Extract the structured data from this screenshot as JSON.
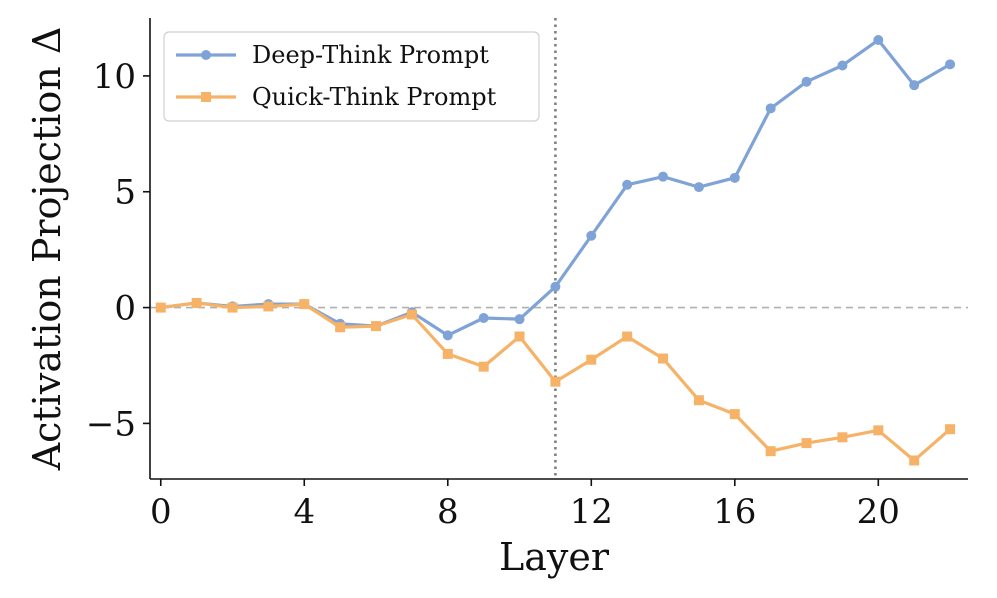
{
  "chart_data": {
    "type": "line",
    "xlabel": "Layer",
    "ylabel": "Activation Projection Δ",
    "xlim": [
      -0.3,
      22.5
    ],
    "ylim": [
      -7.4,
      12.5
    ],
    "xticks": [
      0,
      4,
      8,
      12,
      16,
      20
    ],
    "xtick_labels": [
      "0",
      "4",
      "8",
      "12",
      "16",
      "20"
    ],
    "yticks": [
      10,
      5,
      0,
      -5
    ],
    "ytick_labels": [
      "10",
      "5",
      "0",
      "−5"
    ],
    "legend_position": "top-left",
    "reference_lines": [
      {
        "orientation": "horizontal",
        "value": 0,
        "style": "dashed",
        "color": "#b0b0b0"
      },
      {
        "orientation": "vertical",
        "value": 11,
        "style": "dotted",
        "color": "#808080"
      }
    ],
    "x": [
      0,
      1,
      2,
      3,
      4,
      5,
      6,
      7,
      8,
      9,
      10,
      11,
      12,
      13,
      14,
      15,
      16,
      17,
      18,
      19,
      20,
      21,
      22
    ],
    "series": [
      {
        "name": "Deep-Think Prompt",
        "color": "#7fa3d6",
        "marker": "circle",
        "values": [
          0,
          0.2,
          0.05,
          0.15,
          0.15,
          -0.7,
          -0.8,
          -0.2,
          -1.2,
          -0.45,
          -0.5,
          0.9,
          3.1,
          5.3,
          5.65,
          5.2,
          5.6,
          8.6,
          9.75,
          10.45,
          11.55,
          9.6,
          10.5
        ]
      },
      {
        "name": "Quick-Think Prompt",
        "color": "#f6b267",
        "marker": "square",
        "values": [
          0,
          0.2,
          0.0,
          0.05,
          0.15,
          -0.85,
          -0.8,
          -0.3,
          -2.0,
          -2.55,
          -1.25,
          -3.2,
          -2.25,
          -1.25,
          -2.2,
          -4.0,
          -4.6,
          -6.2,
          -5.85,
          -5.6,
          -5.3,
          -6.6,
          -5.25
        ]
      }
    ]
  }
}
